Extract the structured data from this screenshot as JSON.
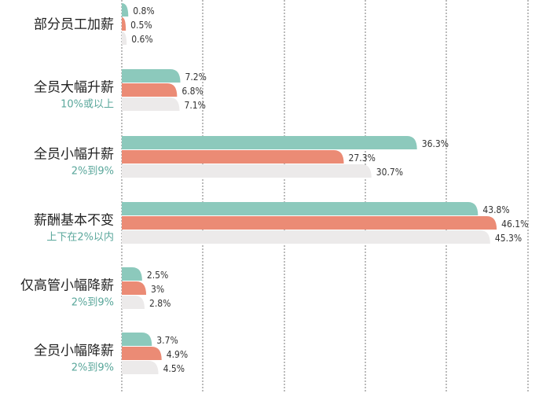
{
  "colors": {
    "series1": "#8cc9bc",
    "series2": "#eb8b75",
    "series3": "#eceaea",
    "subtitle": "#5aa79b",
    "grid": "#777777"
  },
  "chart_data": {
    "type": "bar",
    "orientation": "horizontal",
    "categories": [
      {
        "label": "部分员工加薪",
        "sublabel": ""
      },
      {
        "label": "全员大幅升薪",
        "sublabel": "10%或以上"
      },
      {
        "label": "全员小幅升薪",
        "sublabel": "2%到9%"
      },
      {
        "label": "薪酬基本不变",
        "sublabel": "上下在2%以内"
      },
      {
        "label": "仅高管小幅降薪",
        "sublabel": "2%到9%"
      },
      {
        "label": "全员小幅降薪",
        "sublabel": "2%到9%"
      }
    ],
    "series": [
      {
        "values": [
          0.8,
          7.2,
          36.3,
          43.8,
          2.5,
          3.7
        ],
        "labels": [
          "0.8%",
          "7.2%",
          "36.3%",
          "43.8%",
          "2.5%",
          "3.7%"
        ]
      },
      {
        "values": [
          0.5,
          6.8,
          27.3,
          46.1,
          3,
          4.9
        ],
        "labels": [
          "0.5%",
          "6.8%",
          "27.3%",
          "46.1%",
          "3%",
          "4.9%"
        ]
      },
      {
        "values": [
          0.6,
          7.1,
          30.7,
          45.3,
          2.8,
          4.5
        ],
        "labels": [
          "0.6%",
          "7.1%",
          "30.7%",
          "45.3%",
          "2.8%",
          "4.5%"
        ]
      }
    ],
    "xlim": [
      0,
      50
    ],
    "grid": true,
    "legend": "none"
  }
}
